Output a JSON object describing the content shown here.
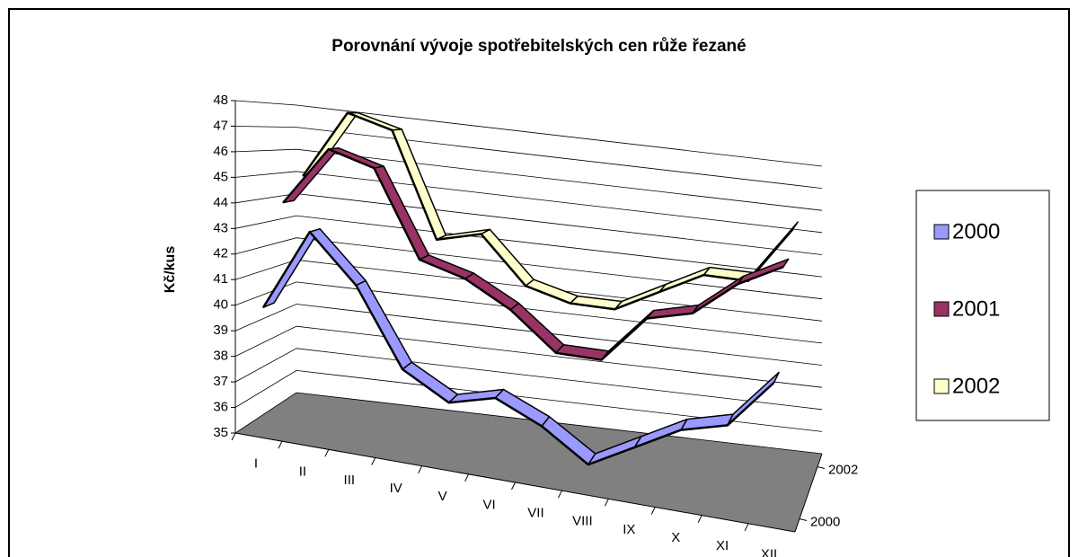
{
  "chart_data": {
    "type": "line3d",
    "title": "Porovnání vývoje spotřebitelských cen růže řezané",
    "y_label": "Kč/kus",
    "categories": [
      "I",
      "II",
      "III",
      "IV",
      "V",
      "VI",
      "VII",
      "VIII",
      "IX",
      "X",
      "XI",
      "XII"
    ],
    "z_categories": [
      "2000",
      null,
      "2002"
    ],
    "series": [
      {
        "name": "2000",
        "color": "#9999ff",
        "values": [
          40,
          43.3,
          41.5,
          38.5,
          37.5,
          38,
          37.2,
          36,
          37,
          38,
          38.5,
          40.5
        ]
      },
      {
        "name": "2001",
        "color": "#993366",
        "values": [
          44,
          46.5,
          46,
          42.5,
          42,
          41,
          39.5,
          39.5,
          41.5,
          42,
          43.5,
          44.5
        ]
      },
      {
        "name": "2002",
        "color": "#ffffcc",
        "values": [
          45,
          48,
          47.5,
          43,
          43.5,
          41.5,
          41,
          41,
          42,
          43,
          43,
          45.5
        ]
      }
    ],
    "ylim": [
      35,
      48
    ],
    "yticks": [
      35,
      36,
      37,
      38,
      39,
      40,
      41,
      42,
      43,
      44,
      45,
      46,
      47,
      48
    ],
    "grid": true,
    "floor_color": "#808080"
  }
}
